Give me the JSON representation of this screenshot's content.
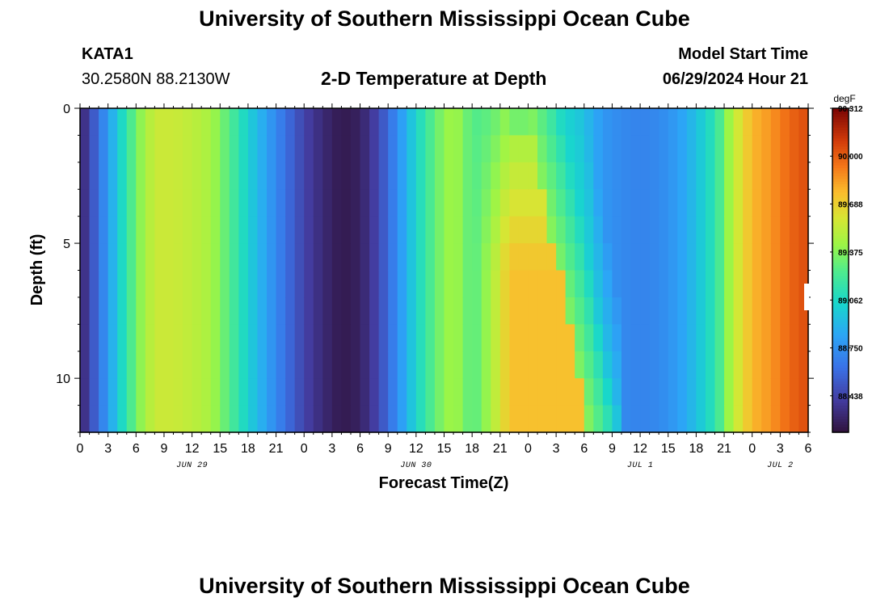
{
  "page": {
    "title": "University of Southern Mississippi Ocean Cube",
    "station_id": "KATA1",
    "station_coords": "30.2580N  88.2130W",
    "subtitle": "2-D Temperature at Depth",
    "model_start_label": "Model Start Time",
    "model_start_value": "06/29/2024 Hour 21",
    "footer_title": "University of Southern Mississippi Ocean Cube"
  },
  "chart_data": {
    "type": "heatmap",
    "title": "2-D Temperature at Depth",
    "xlabel": "Forecast Time(Z)",
    "ylabel": "Depth (ft)",
    "x_unit": "hours since 06/29/2024 00Z",
    "xlim": [
      0,
      78
    ],
    "ylim": [
      0,
      12
    ],
    "y_inverted": true,
    "x_ticks": [
      0,
      3,
      6,
      9,
      12,
      15,
      18,
      21,
      24,
      27,
      30,
      33,
      36,
      39,
      42,
      45,
      48,
      51,
      54,
      57,
      60,
      63,
      66,
      69,
      72,
      75,
      78
    ],
    "x_tick_labels": [
      "0",
      "3",
      "6",
      "9",
      "12",
      "15",
      "18",
      "21",
      "0",
      "3",
      "6",
      "9",
      "12",
      "15",
      "18",
      "21",
      "0",
      "3",
      "6",
      "9",
      "12",
      "15",
      "18",
      "21",
      "0",
      "3",
      "6"
    ],
    "date_labels": [
      {
        "text": "JUN 29",
        "x": 12
      },
      {
        "text": "JUN 30",
        "x": 36
      },
      {
        "text": "JUL 1",
        "x": 60
      },
      {
        "text": "JUL 2",
        "x": 75
      }
    ],
    "y_ticks": [
      0,
      5,
      10
    ],
    "y_tick_labels": [
      "0",
      "5",
      "10"
    ],
    "colorbar": {
      "unit": "degF",
      "min": 88.2,
      "max": 90.312,
      "tick_values": [
        90.312,
        90.0,
        89.688,
        89.375,
        89.062,
        88.75,
        88.438
      ],
      "tick_labels": [
        "90.312",
        "90.000",
        "89.688",
        "89.375",
        "89.062",
        "88.750",
        "88.438"
      ]
    },
    "time_step_hours": 1,
    "depth_levels_ft": [
      0,
      1,
      2,
      3,
      4,
      5,
      6,
      7,
      8,
      9,
      10,
      11,
      12
    ],
    "surface_profile": {
      "hours": [
        0,
        2,
        4,
        6,
        8,
        10,
        12,
        14,
        16,
        18,
        20,
        22,
        24,
        26,
        28,
        30,
        32,
        34,
        36,
        38,
        40,
        42,
        44,
        46,
        48,
        50,
        52,
        54,
        56,
        58,
        60,
        62,
        64,
        66,
        68,
        70,
        72,
        74,
        76,
        78
      ],
      "degF": [
        88.28,
        88.62,
        88.98,
        89.34,
        89.56,
        89.56,
        89.52,
        89.46,
        89.26,
        89.02,
        88.82,
        88.62,
        88.44,
        88.32,
        88.24,
        88.28,
        88.46,
        88.74,
        89.04,
        89.3,
        89.46,
        89.26,
        89.18,
        89.1,
        89.06,
        89.0,
        88.96,
        88.94,
        88.78,
        88.72,
        88.7,
        88.72,
        88.8,
        88.94,
        89.14,
        89.52,
        89.78,
        89.86,
        89.98,
        90.06
      ]
    },
    "anomaly_region": {
      "description_hours": [
        42,
        54
      ],
      "warm_core_degF": 89.75,
      "warm_core_depth_ft": [
        6,
        12
      ],
      "warm_core_hours": [
        46,
        50
      ],
      "cool_surface_degF": 89.16
    }
  }
}
